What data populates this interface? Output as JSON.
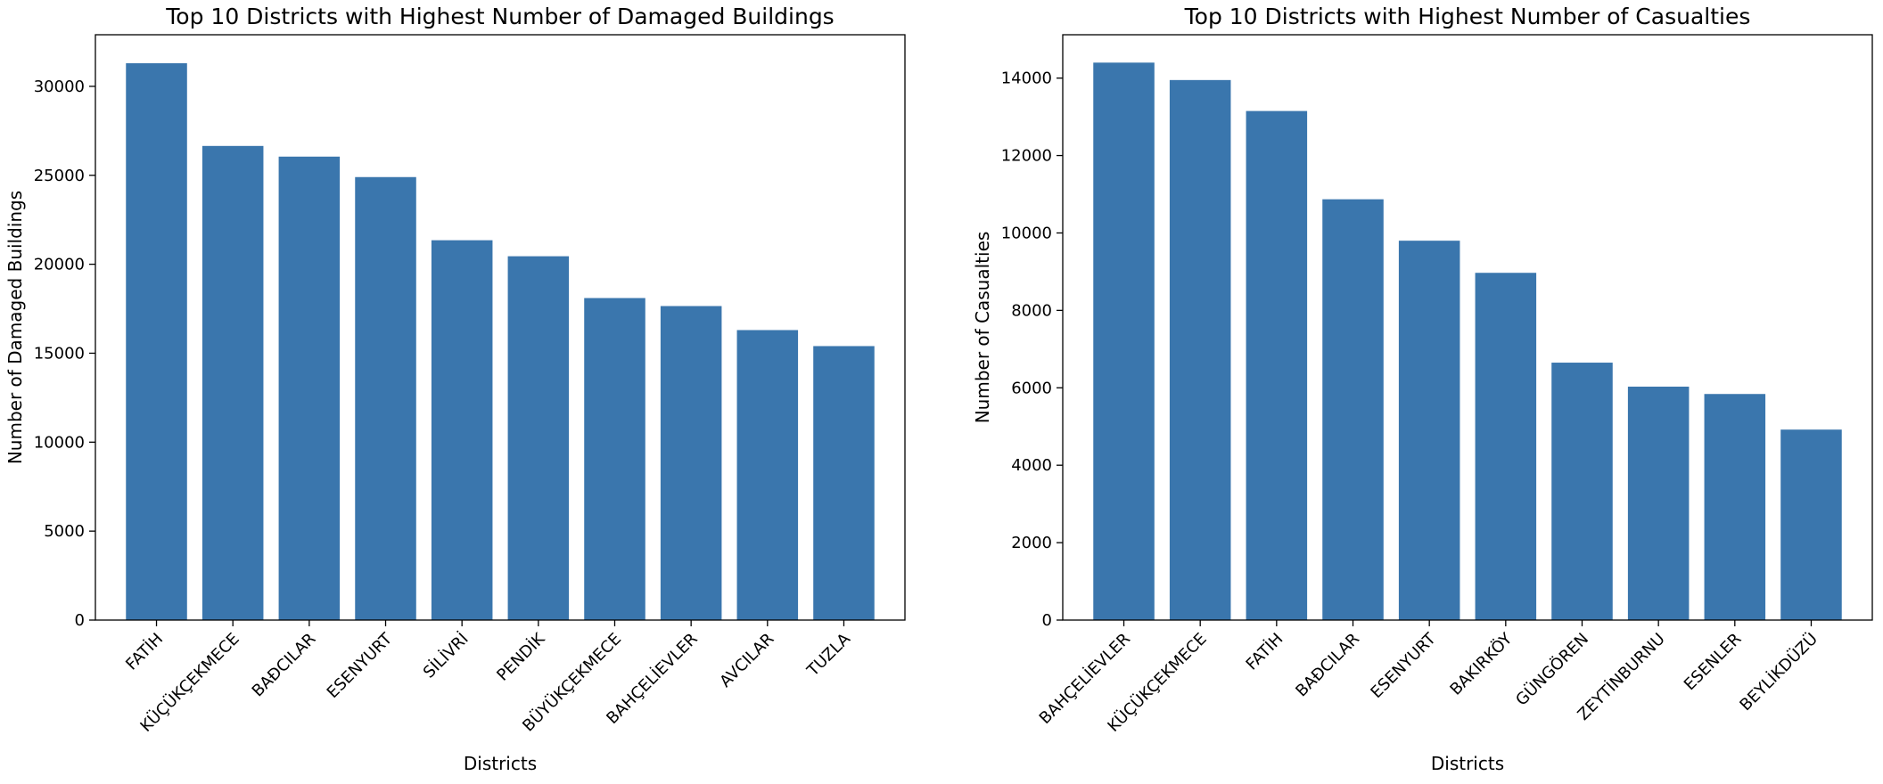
{
  "chart_data": [
    {
      "type": "bar",
      "title": "Top 10 Districts with Highest Number of Damaged Buildings",
      "xlabel": "Districts",
      "ylabel": "Number of Damaged Buildings",
      "categories": [
        "FATİH",
        "KÜÇÜKÇEKMECE",
        "BAĐCILAR",
        "ESENYURT",
        "SİLİVRİ",
        "PENDİK",
        "BÜYÜKÇEKMECE",
        "BAHÇELİEVLER",
        "AVCILAR",
        "TUZLA"
      ],
      "values": [
        31300,
        26650,
        26050,
        24900,
        21350,
        20450,
        18100,
        17650,
        16300,
        15400
      ],
      "ylim": [
        0,
        32900
      ],
      "yticks": [
        0,
        5000,
        10000,
        15000,
        20000,
        25000,
        30000
      ],
      "grid": false,
      "colors": {
        "bar": "#3a76ad"
      }
    },
    {
      "type": "bar",
      "title": "Top 10 Districts with Highest Number of Casualties",
      "xlabel": "Districts",
      "ylabel": "Number of Casualties",
      "categories": [
        "BAHÇELİEVLER",
        "KÜÇÜKÇEKMECE",
        "FATİH",
        "BAĐCILAR",
        "ESENYURT",
        "BAKIRKÖY",
        "GÜNGÖREN",
        "ZEYTİNBURNU",
        "ESENLER",
        "BEYLİKDÜZÜ"
      ],
      "values": [
        14400,
        13950,
        13150,
        10870,
        9800,
        8970,
        6650,
        6030,
        5840,
        4920
      ],
      "ylim": [
        0,
        15120
      ],
      "yticks": [
        0,
        2000,
        4000,
        6000,
        8000,
        10000,
        12000,
        14000
      ],
      "grid": false,
      "colors": {
        "bar": "#3a76ad"
      }
    }
  ]
}
